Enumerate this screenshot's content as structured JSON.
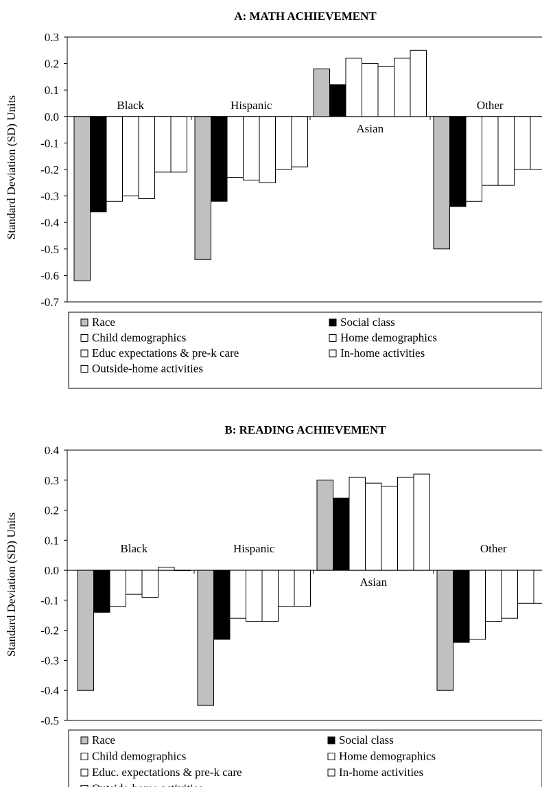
{
  "colors": {
    "race": "#c0c0c0",
    "social_class": "#000000",
    "other_bars": "#ffffff",
    "stroke": "#000000"
  },
  "chart_data": [
    {
      "type": "bar",
      "title": "A: MATH ACHIEVEMENT",
      "ylabel": "Standard Deviation (SD) Units",
      "ylim": [
        -0.7,
        0.3
      ],
      "yticks": [
        "0.3",
        "0.2",
        "0.1",
        "0.0",
        "-0.1",
        "-0.2",
        "-0.3",
        "-0.4",
        "-0.5",
        "-0.6",
        "-0.7"
      ],
      "grid": false,
      "legend_position": "bottom",
      "categories": [
        "Black",
        "Hispanic",
        "Asian",
        "Other"
      ],
      "series": [
        {
          "name": "Race",
          "values": [
            -0.62,
            -0.54,
            0.18,
            -0.5
          ]
        },
        {
          "name": "Social class",
          "values": [
            -0.36,
            -0.32,
            0.12,
            -0.34
          ]
        },
        {
          "name": "Child demographics",
          "values": [
            -0.32,
            -0.23,
            0.22,
            -0.32
          ]
        },
        {
          "name": "Home demographics",
          "values": [
            -0.3,
            -0.24,
            0.2,
            -0.26
          ]
        },
        {
          "name": "Educ expectations & pre-k care",
          "values": [
            -0.31,
            -0.25,
            0.19,
            -0.26
          ]
        },
        {
          "name": "In-home activities",
          "values": [
            -0.21,
            -0.2,
            0.22,
            -0.2
          ]
        },
        {
          "name": "Outside-home activities",
          "values": [
            -0.21,
            -0.19,
            0.25,
            -0.2
          ]
        }
      ]
    },
    {
      "type": "bar",
      "title": "B: READING ACHIEVEMENT",
      "ylabel": "Standard Deviation (SD) Units",
      "ylim": [
        -0.5,
        0.4
      ],
      "yticks": [
        "0.4",
        "0.3",
        "0.2",
        "0.1",
        "0.0",
        "-0.1",
        "-0.2",
        "-0.3",
        "-0.4",
        "-0.5"
      ],
      "grid": false,
      "legend_position": "bottom",
      "categories": [
        "Black",
        "Hispanic",
        "Asian",
        "Other"
      ],
      "series": [
        {
          "name": "Race",
          "values": [
            -0.4,
            -0.45,
            0.3,
            -0.4
          ]
        },
        {
          "name": "Social class",
          "values": [
            -0.14,
            -0.23,
            0.24,
            -0.24
          ]
        },
        {
          "name": "Child demographics",
          "values": [
            -0.12,
            -0.16,
            0.31,
            -0.23
          ]
        },
        {
          "name": "Home demographics",
          "values": [
            -0.08,
            -0.17,
            0.29,
            -0.17
          ]
        },
        {
          "name": "Educ. expectations & pre-k care",
          "values": [
            -0.09,
            -0.17,
            0.28,
            -0.16
          ]
        },
        {
          "name": "In-home activities",
          "values": [
            0.01,
            -0.12,
            0.31,
            -0.11
          ]
        },
        {
          "name": "Outside-home activities",
          "values": [
            0.0,
            -0.12,
            0.32,
            -0.11
          ]
        }
      ]
    }
  ]
}
